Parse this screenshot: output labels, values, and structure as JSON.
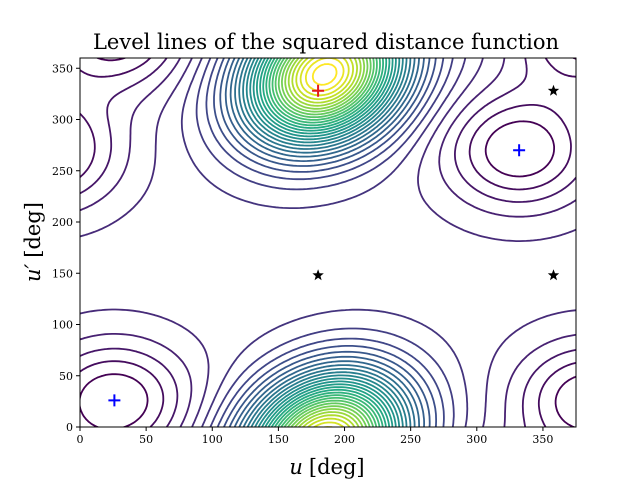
{
  "chart_data": {
    "type": "contour",
    "title": "Level lines of the squared distance function",
    "xlabel": {
      "var": "u",
      "unit": "[deg]"
    },
    "ylabel": {
      "var": "u′",
      "unit": "[deg]"
    },
    "xlim": [
      0,
      375
    ],
    "ylim": [
      0,
      360
    ],
    "xticks": [
      0,
      50,
      100,
      150,
      200,
      250,
      300,
      350
    ],
    "yticks": [
      0,
      50,
      100,
      150,
      200,
      250,
      300,
      350
    ],
    "colormap": "viridis",
    "grid": false,
    "maxima": [
      {
        "u": 180,
        "up": 328
      },
      {
        "u": 190,
        "up": 0
      }
    ],
    "saddles": [
      {
        "u": 180,
        "up": 150
      },
      {
        "u": 0,
        "up": 150
      },
      {
        "u": 360,
        "up": 150
      }
    ],
    "minima": [
      {
        "u": 26,
        "up": 26
      },
      {
        "u": 332,
        "up": 270
      }
    ],
    "markers": [
      {
        "u": 180,
        "up": 328,
        "marker": "plus",
        "color": "#e41a1c"
      },
      {
        "u": 26,
        "up": 26,
        "marker": "plus",
        "color": "#0000ff"
      },
      {
        "u": 332,
        "up": 270,
        "marker": "plus",
        "color": "#0000ff"
      },
      {
        "u": 180,
        "up": 148,
        "marker": "star",
        "color": "#000000"
      },
      {
        "u": 358,
        "up": 328,
        "marker": "star",
        "color": "#000000"
      },
      {
        "u": 358,
        "up": 148,
        "marker": "star",
        "color": "#000000"
      }
    ]
  }
}
